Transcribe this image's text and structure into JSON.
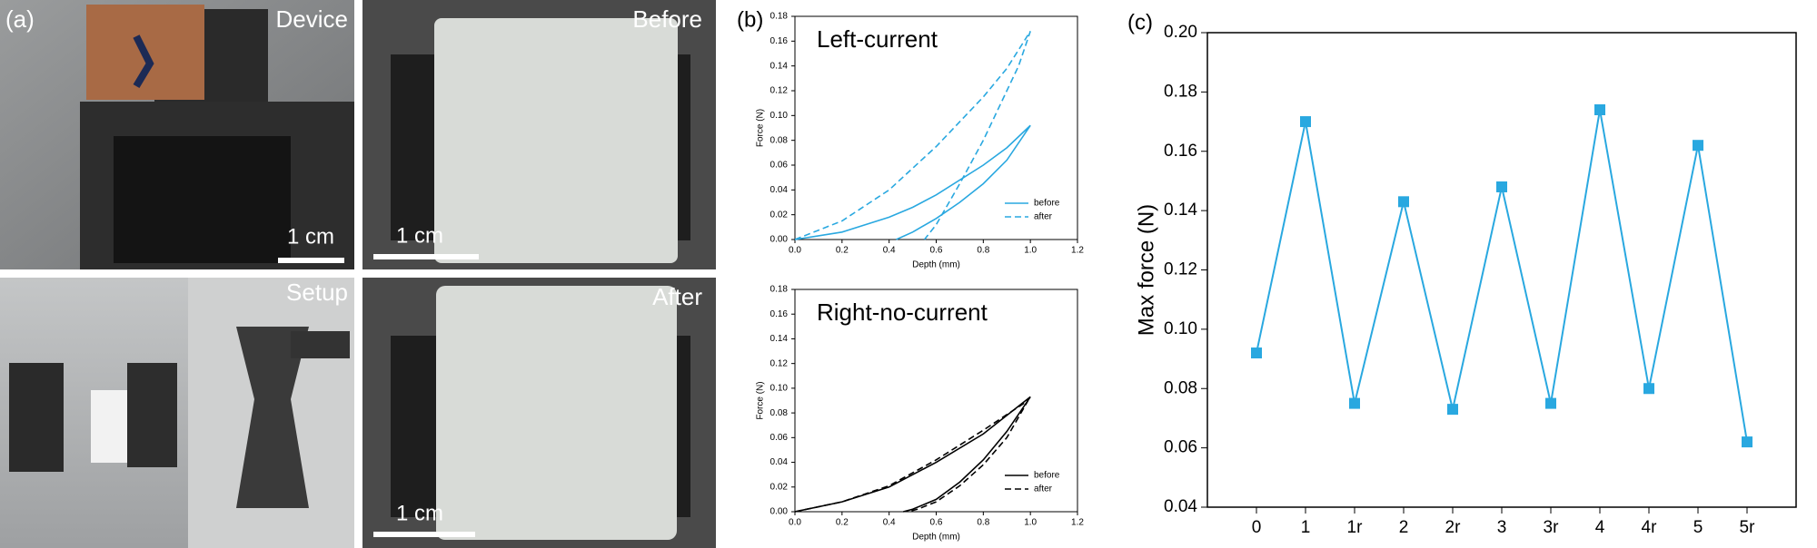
{
  "panel_a": {
    "label": "(a)",
    "photos": [
      {
        "label": "Device",
        "scale_bar": "1 cm"
      },
      {
        "label": "Before",
        "scale_bar": "1 cm"
      },
      {
        "label": "Setup"
      },
      {
        "label": "After",
        "scale_bar": "1 cm"
      }
    ]
  },
  "chart_data": [
    {
      "type": "line",
      "panel_label": "(b)",
      "title": "Left-current",
      "xlabel": "Depth (mm)",
      "ylabel": "Force (N)",
      "xlim": [
        0,
        1.2
      ],
      "xticks": [
        {
          "value": 0,
          "label": "0.0"
        },
        0.2,
        0.4,
        0.6,
        0.8,
        {
          "value": 1,
          "label": "1.0"
        },
        1.2
      ],
      "ylim": [
        0,
        0.18
      ],
      "yticks": [
        {
          "value": 0,
          "label": "0.00"
        },
        0.02,
        0.04,
        0.06,
        0.08,
        {
          "value": 0.1,
          "label": "0.10"
        },
        0.12,
        0.14,
        0.16,
        0.18
      ],
      "legend": "lower right",
      "series": [
        {
          "name": "before",
          "color": "#29a8e0",
          "style": "solid",
          "x": [
            0,
            0.2,
            0.4,
            0.5,
            0.6,
            0.8,
            0.9,
            1,
            0.9,
            0.8,
            0.7,
            0.6,
            0.5,
            0.43
          ],
          "values": [
            0,
            0.006,
            0.018,
            0.026,
            0.036,
            0.06,
            0.074,
            0.092,
            0.064,
            0.045,
            0.03,
            0.017,
            0.006,
            0
          ]
        },
        {
          "name": "after",
          "color": "#29a8e0",
          "style": "dashed",
          "x": [
            0,
            0.2,
            0.4,
            0.6,
            0.8,
            0.9,
            1,
            0.95,
            0.9,
            0.8,
            0.7,
            0.6,
            0.55
          ],
          "values": [
            0,
            0.015,
            0.04,
            0.075,
            0.115,
            0.138,
            0.168,
            0.14,
            0.12,
            0.08,
            0.045,
            0.012,
            0
          ]
        }
      ]
    },
    {
      "type": "line",
      "title": "Right-no-current",
      "xlabel": "Depth (mm)",
      "ylabel": "Force (N)",
      "xlim": [
        0,
        1.2
      ],
      "xticks": [
        {
          "value": 0,
          "label": "0.0"
        },
        0.2,
        0.4,
        0.6,
        0.8,
        {
          "value": 1,
          "label": "1.0"
        },
        1.2
      ],
      "ylim": [
        0,
        0.18
      ],
      "yticks": [
        {
          "value": 0,
          "label": "0.00"
        },
        0.02,
        0.04,
        0.06,
        0.08,
        {
          "value": 0.1,
          "label": "0.10"
        },
        0.12,
        0.14,
        0.16,
        0.18
      ],
      "legend": "lower right",
      "series": [
        {
          "name": "before",
          "color": "#000000",
          "style": "solid",
          "x": [
            0,
            0.2,
            0.4,
            0.6,
            0.8,
            1,
            0.9,
            0.8,
            0.7,
            0.6,
            0.5,
            0.46
          ],
          "values": [
            0,
            0.008,
            0.02,
            0.04,
            0.063,
            0.093,
            0.065,
            0.042,
            0.024,
            0.01,
            0.002,
            0
          ]
        },
        {
          "name": "after",
          "color": "#000000",
          "style": "dashed",
          "x": [
            0,
            0.2,
            0.4,
            0.6,
            0.8,
            0.99,
            0.9,
            0.8,
            0.7,
            0.6,
            0.52,
            0.48
          ],
          "values": [
            0,
            0.008,
            0.021,
            0.042,
            0.066,
            0.09,
            0.06,
            0.038,
            0.021,
            0.008,
            0.002,
            0
          ]
        }
      ]
    },
    {
      "type": "line-marker",
      "panel_label": "(c)",
      "ylabel": "Max force (N)",
      "categories": [
        "0",
        "1",
        "1r",
        "2",
        "2r",
        "3",
        "3r",
        "4",
        "4r",
        "5",
        "5r"
      ],
      "values": [
        0.092,
        0.17,
        0.075,
        0.143,
        0.073,
        0.148,
        0.075,
        0.174,
        0.08,
        0.162,
        0.062
      ],
      "color": "#29a8e0",
      "ylim": [
        0.04,
        0.2
      ],
      "yticks": [
        0.04,
        0.06,
        0.08,
        {
          "value": 0.1,
          "label": "0.10"
        },
        0.12,
        0.14,
        0.16,
        0.18,
        {
          "value": 0.2,
          "label": "0.20"
        }
      ]
    }
  ]
}
